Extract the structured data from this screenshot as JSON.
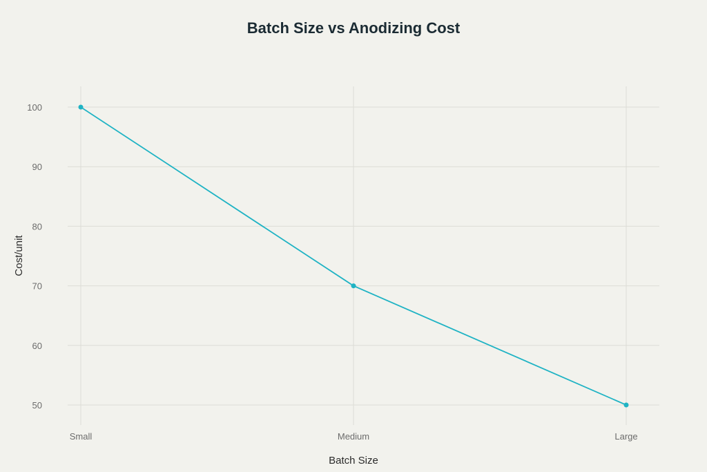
{
  "chart_data": {
    "type": "line",
    "title": "Batch Size vs Anodizing Cost",
    "xlabel": "Batch Size",
    "ylabel": "Cost/unit",
    "categories": [
      "Small",
      "Medium",
      "Large"
    ],
    "series": [
      {
        "name": "Cost/unit",
        "values": [
          100,
          70,
          50
        ],
        "color": "#1fb3c4"
      }
    ],
    "yticks": [
      50,
      60,
      70,
      80,
      90,
      100
    ],
    "ylim": [
      46.5,
      103.5
    ],
    "grid": true,
    "legend": "none"
  }
}
